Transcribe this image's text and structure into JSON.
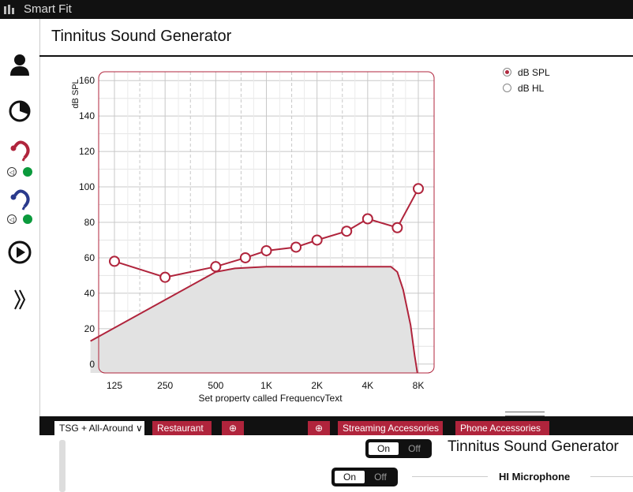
{
  "app": {
    "title": "Smart Fit"
  },
  "sidebar": {
    "items": [
      {
        "icon": "person-icon"
      },
      {
        "icon": "pie-chart-icon"
      },
      {
        "icon": "right-hearing-aid-icon",
        "status_color": "#0b9a3c"
      },
      {
        "icon": "left-hearing-aid-icon",
        "status_color": "#0b9a3c"
      },
      {
        "icon": "play-icon"
      },
      {
        "icon": "expand-chevron-icon"
      }
    ]
  },
  "page": {
    "title": "Tinnitus Sound Generator"
  },
  "units": {
    "options": [
      {
        "label": "dB SPL",
        "selected": true
      },
      {
        "label": "dB HL",
        "selected": false
      }
    ]
  },
  "chart_data": {
    "type": "line",
    "ylabel": "dB SPL",
    "xlabel": "Set property called FrequencyText",
    "ylim": [
      -5,
      165
    ],
    "yticks": [
      0,
      20,
      40,
      60,
      80,
      100,
      120,
      140,
      160
    ],
    "xticks": [
      "125",
      "250",
      "500",
      "1K",
      "2K",
      "4K",
      "8K"
    ],
    "grid": true,
    "colors": {
      "series": "#b0243c",
      "fill": "#e2e2e2",
      "border": "#b0243c"
    },
    "series": [
      {
        "style": "markers",
        "x": [
          125,
          250,
          500,
          750,
          1000,
          1500,
          2000,
          3000,
          4000,
          6000,
          8000
        ],
        "y": [
          58,
          49,
          55,
          60,
          64,
          66,
          70,
          75,
          82,
          77,
          99
        ]
      },
      {
        "style": "filled-curve",
        "x": [
          90,
          500,
          650,
          1000,
          2000,
          4000,
          5500,
          6000,
          6500,
          7200,
          7600,
          7900
        ],
        "y": [
          13,
          52,
          54,
          55,
          55,
          55,
          55,
          52,
          42,
          22,
          5,
          -5
        ]
      }
    ]
  },
  "tabs": [
    {
      "label": "TSG + All-Around ∨",
      "selected": true
    },
    {
      "label": "Restaurant",
      "selected": false
    },
    {
      "label": "⊕",
      "selected": false
    },
    {
      "label": "⊕",
      "selected": false
    },
    {
      "label": "Streaming Accessories",
      "selected": false
    },
    {
      "label": "Phone Accessories",
      "selected": false
    }
  ],
  "bottom": {
    "tsg_toggle": {
      "on": "On",
      "off": "Off"
    },
    "tsg_label": "Tinnitus Sound Generator",
    "mic_toggle": {
      "on": "On",
      "off": "Off"
    },
    "mic_label": "HI Microphone"
  }
}
